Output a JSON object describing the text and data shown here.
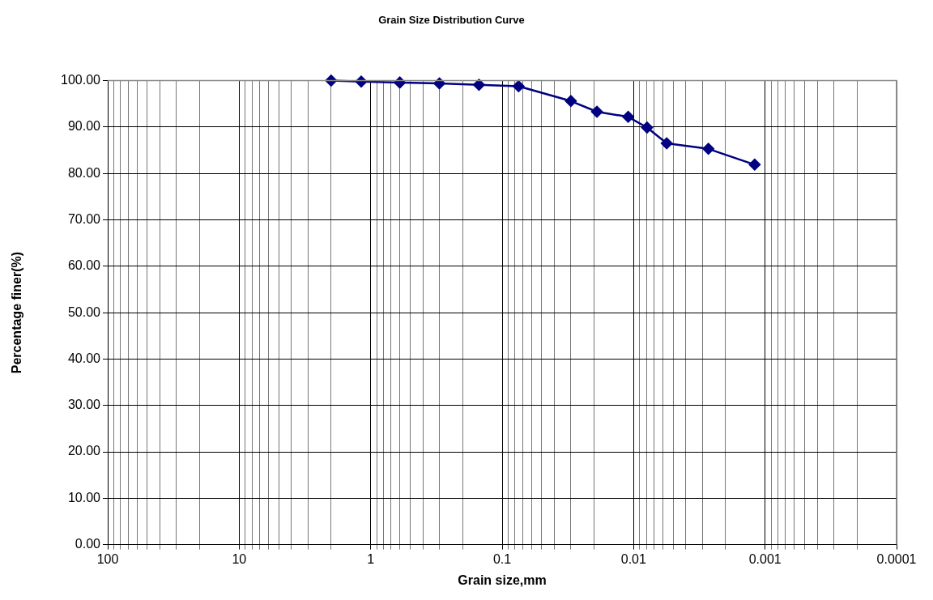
{
  "chart_data": {
    "type": "line",
    "title": "Grain Size Distribution Curve",
    "xlabel": "Grain size,mm",
    "ylabel": "Percentage finer(%)",
    "x": [
      2,
      1.18,
      0.6,
      0.3,
      0.15,
      0.075,
      0.03,
      0.019,
      0.011,
      0.0079,
      0.0056,
      0.0027,
      0.0012
    ],
    "series": [
      {
        "color": "#000080",
        "values": [
          100,
          99.8,
          99.6,
          99.4,
          99.1,
          98.8,
          95.6,
          93.3,
          92.2,
          89.9,
          86.5,
          85.3,
          81.9
        ]
      }
    ],
    "log": "x",
    "xlim": [
      100,
      0.0001
    ],
    "xticks": [
      {
        "value": 100,
        "label": "100"
      },
      {
        "value": 90,
        "label": null
      },
      {
        "value": 80,
        "label": null
      },
      {
        "value": 70,
        "label": null
      },
      {
        "value": 60,
        "label": null
      },
      {
        "value": 50,
        "label": null
      },
      {
        "value": 40,
        "label": null
      },
      {
        "value": 30,
        "label": null
      },
      {
        "value": 20,
        "label": null
      },
      {
        "value": 10,
        "label": "10"
      },
      {
        "value": 9,
        "label": null
      },
      {
        "value": 8,
        "label": null
      },
      {
        "value": 7,
        "label": null
      },
      {
        "value": 6,
        "label": null
      },
      {
        "value": 5,
        "label": null
      },
      {
        "value": 4,
        "label": null
      },
      {
        "value": 3,
        "label": null
      },
      {
        "value": 2,
        "label": null
      },
      {
        "value": 1,
        "label": "1"
      },
      {
        "value": 0.9,
        "label": null
      },
      {
        "value": 0.8,
        "label": null
      },
      {
        "value": 0.7,
        "label": null
      },
      {
        "value": 0.6,
        "label": null
      },
      {
        "value": 0.5,
        "label": null
      },
      {
        "value": 0.4,
        "label": null
      },
      {
        "value": 0.3,
        "label": null
      },
      {
        "value": 0.2,
        "label": null
      },
      {
        "value": 0.1,
        "label": "0.1"
      },
      {
        "value": 0.09,
        "label": null
      },
      {
        "value": 0.08,
        "label": null
      },
      {
        "value": 0.07,
        "label": null
      },
      {
        "value": 0.06,
        "label": null
      },
      {
        "value": 0.05,
        "label": null
      },
      {
        "value": 0.04,
        "label": null
      },
      {
        "value": 0.03,
        "label": null
      },
      {
        "value": 0.02,
        "label": null
      },
      {
        "value": 0.01,
        "label": "0.01"
      },
      {
        "value": 0.009,
        "label": null
      },
      {
        "value": 0.008,
        "label": null
      },
      {
        "value": 0.007,
        "label": null
      },
      {
        "value": 0.006,
        "label": null
      },
      {
        "value": 0.005,
        "label": null
      },
      {
        "value": 0.004,
        "label": null
      },
      {
        "value": 0.003,
        "label": null
      },
      {
        "value": 0.002,
        "label": null
      },
      {
        "value": 0.001,
        "label": "0.001"
      },
      {
        "value": 0.0009,
        "label": null
      },
      {
        "value": 0.0008,
        "label": null
      },
      {
        "value": 0.0007,
        "label": null
      },
      {
        "value": 0.0006,
        "label": null
      },
      {
        "value": 0.0005,
        "label": null
      },
      {
        "value": 0.0004,
        "label": null
      },
      {
        "value": 0.0003,
        "label": null
      },
      {
        "value": 0.0002,
        "label": null
      },
      {
        "value": 0.0001,
        "label": "0.0001"
      }
    ],
    "ylim": [
      0,
      100
    ],
    "yticks": [
      {
        "value": 0,
        "label": "0.00"
      },
      {
        "value": 10,
        "label": "10.00"
      },
      {
        "value": 20,
        "label": "20.00"
      },
      {
        "value": 30,
        "label": "30.00"
      },
      {
        "value": 40,
        "label": "40.00"
      },
      {
        "value": 50,
        "label": "50.00"
      },
      {
        "value": 60,
        "label": "60.00"
      },
      {
        "value": 70,
        "label": "70.00"
      },
      {
        "value": 80,
        "label": "80.00"
      },
      {
        "value": 90,
        "label": "90.00"
      },
      {
        "value": 100,
        "label": "100.00"
      }
    ],
    "grid": true,
    "legend": false,
    "marker": "diamond",
    "line_style": "solid"
  }
}
